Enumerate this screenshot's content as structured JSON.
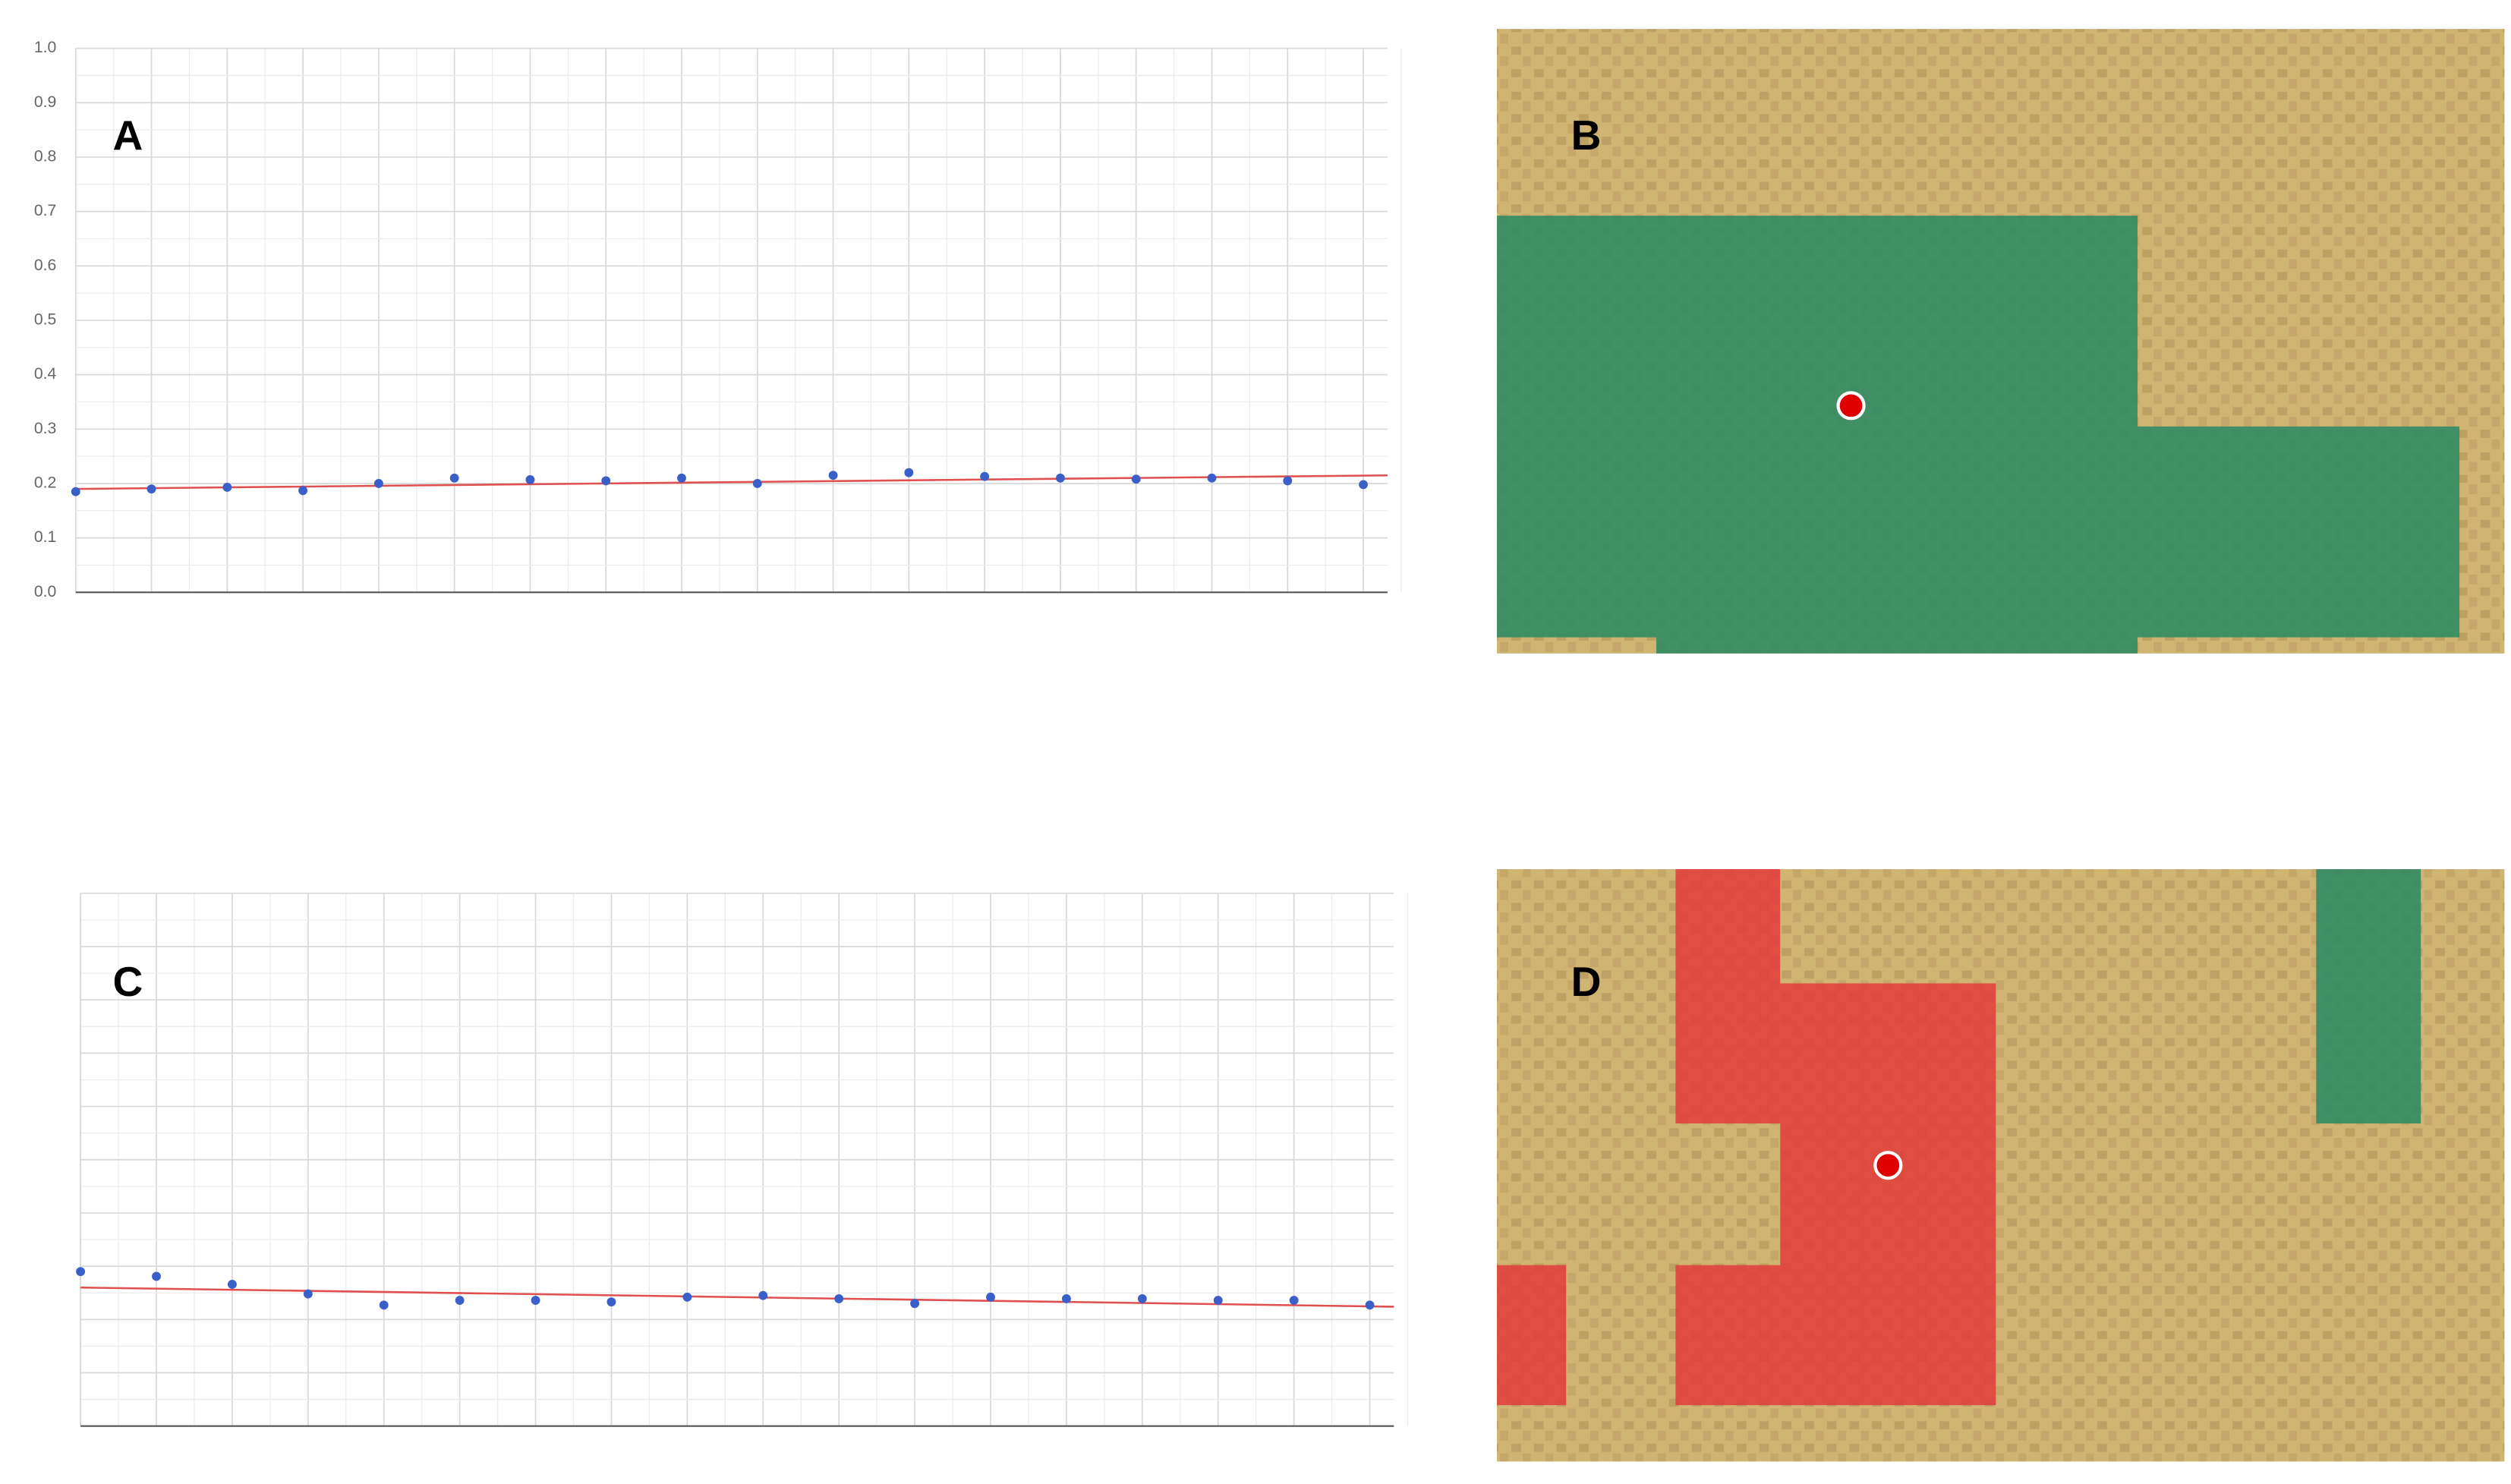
{
  "chart_data": [
    {
      "type": "scatter",
      "title": "A",
      "categories": [
        null,
        null,
        null,
        null,
        null,
        null,
        null,
        null,
        null,
        null,
        null,
        null,
        null,
        null,
        null,
        null,
        null,
        null
      ],
      "values": [
        0.185,
        0.19,
        0.193,
        0.187,
        0.2,
        0.21,
        0.207,
        0.205,
        0.21,
        0.2,
        0.215,
        0.22,
        0.213,
        0.21,
        0.208,
        0.21,
        0.205,
        0.198
      ],
      "trendline": [
        0.19,
        0.215
      ],
      "color": "#3b5fc9",
      "trend_color": "#e05050",
      "ylim": [
        0,
        1
      ],
      "yticks": [
        {
          "value": 0,
          "label": "0.0"
        },
        0.1,
        0.2,
        0.3,
        0.4,
        0.5,
        0.6,
        0.7,
        0.8,
        0.9,
        {
          "value": 1,
          "label": "1.0"
        }
      ],
      "grid": true
    },
    {
      "type": "scatter",
      "title": "C",
      "categories": [
        null,
        null,
        null,
        null,
        null,
        null,
        null,
        null,
        null,
        null,
        null,
        null,
        null,
        null,
        null,
        null,
        null,
        null
      ],
      "values": [
        0.29,
        0.281,
        0.266,
        0.248,
        0.227,
        0.236,
        0.236,
        0.233,
        0.242,
        0.245,
        0.239,
        0.23,
        0.242,
        0.239,
        0.239,
        0.236,
        0.236,
        0.227
      ],
      "trendline": [
        0.26,
        0.224
      ],
      "color": "#3b5fc9",
      "trend_color": "#e05050",
      "ylim": [
        0,
        1
      ],
      "grid": true
    }
  ],
  "maps": [
    {
      "label": "B"
    },
    {
      "label": "D"
    }
  ]
}
